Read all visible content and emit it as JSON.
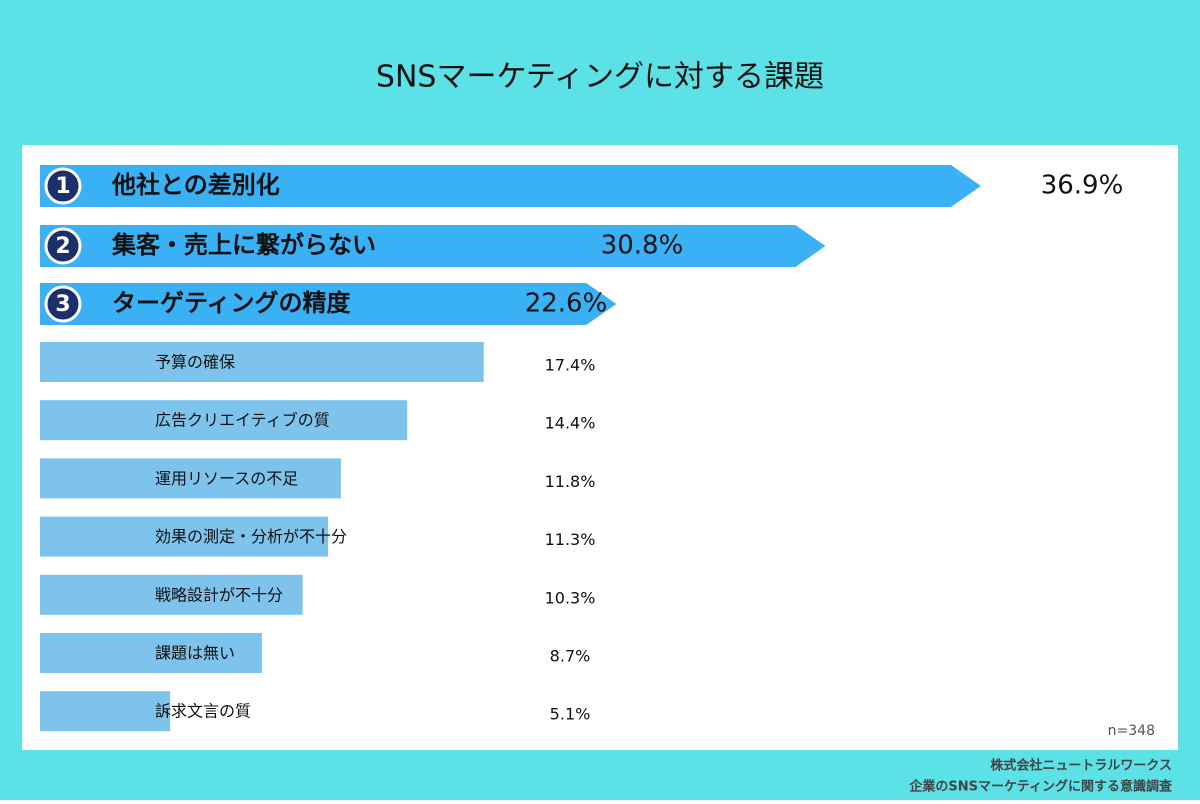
{
  "chart_data": {
    "type": "bar",
    "title": "SNSマーケティングに対する課題",
    "categories": [
      "他社との差別化",
      "集客・売上に繋がらない",
      "ターゲティングの精度",
      "予算の確保",
      "広告クリエイティブの質",
      "運用リソースの不足",
      "効果の測定・分析が不十分",
      "戦略設計が不十分",
      "課題は無い",
      "訴求文言の質"
    ],
    "values": [
      36.9,
      30.8,
      22.6,
      17.4,
      14.4,
      11.8,
      11.3,
      10.3,
      8.7,
      5.1
    ],
    "value_labels": [
      "36.9%",
      "30.8%",
      "22.6%",
      "17.4%",
      "14.4%",
      "11.8%",
      "11.3%",
      "10.3%",
      "8.7%",
      "5.1%"
    ],
    "ranks": [
      "1",
      "2",
      "3"
    ],
    "colors": [
      "#3ab0f5",
      "#7dc3eb"
    ],
    "sample_note": "n=348",
    "source": [
      "株式会社ニュートラルワークス",
      "企業のSNSマーケティングに関する意識調査"
    ]
  }
}
